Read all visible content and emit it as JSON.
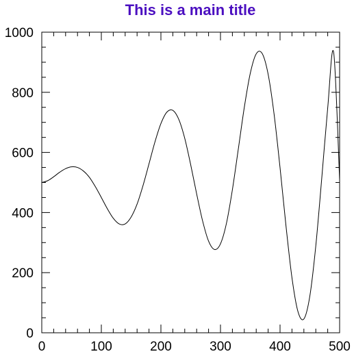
{
  "chart_data": {
    "type": "line",
    "title": "This is a main title",
    "xlabel": "",
    "ylabel": "",
    "xlim": [
      0,
      500
    ],
    "ylim": [
      0,
      1000
    ],
    "x_ticks": [
      0,
      100,
      200,
      300,
      400,
      500
    ],
    "y_ticks": [
      0,
      200,
      400,
      600,
      800,
      1000
    ],
    "x_ticks_labels": [
      "0",
      "100",
      "200",
      "300",
      "400",
      "500"
    ],
    "y_ticks_labels": [
      "0",
      "200",
      "400",
      "600",
      "800",
      "1000"
    ],
    "x_minor_step": 20,
    "y_minor_step": 50,
    "grid": false,
    "series": [
      {
        "x": [
          0,
          10,
          20,
          30,
          40,
          50,
          60,
          70,
          80,
          90,
          100,
          110,
          120,
          130,
          140,
          150,
          160,
          170,
          180,
          190,
          200,
          210,
          220,
          230,
          240,
          250,
          260,
          270,
          280,
          290,
          300,
          310,
          320,
          330,
          340,
          350,
          360,
          370,
          380,
          390,
          400,
          410,
          420,
          430,
          440,
          450,
          460,
          470,
          480,
          490,
          500
        ],
        "y": [
          500,
          506,
          519,
          534,
          546,
          552,
          550,
          538,
          517,
          486,
          450,
          413,
          381,
          362,
          362,
          385,
          428,
          490,
          562,
          635,
          696,
          734,
          740,
          710,
          647,
          559,
          462,
          372,
          305,
          277,
          296,
          364,
          476,
          612,
          750,
          863,
          928,
          929,
          860,
          727,
          549,
          355,
          183,
          71,
          46,
          122,
          289,
          514,
          748,
          933,
          509
        ]
      }
    ],
    "colors": {
      "title": "#4b0fc0",
      "line": "#000000",
      "axis": "#000000"
    }
  }
}
